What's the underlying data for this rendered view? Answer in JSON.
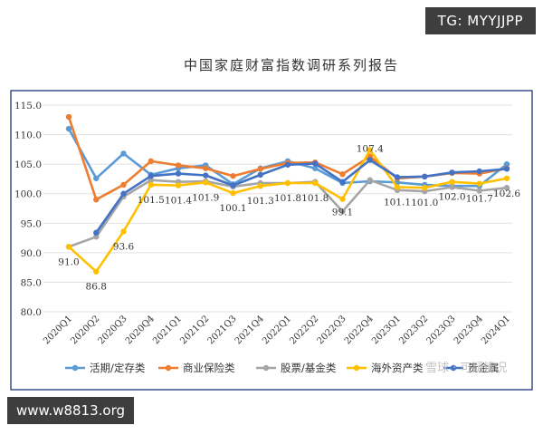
{
  "watermarks": {
    "tg": "TG: MYYJJPP",
    "site": "www.w8813.org",
    "xueqiu": "雪球 · 可疑情况"
  },
  "colors": {
    "frame": "#3a4f8f",
    "grid": "#e1e1e1",
    "axis_text": "#333333"
  },
  "chart_data": {
    "type": "line",
    "title": "中国家庭财富指数调研系列报告",
    "xlabel": "",
    "ylabel": "",
    "ylim": [
      80,
      115
    ],
    "yticks": [
      "80.0",
      "85.0",
      "90.0",
      "95.0",
      "100.0",
      "105.0",
      "110.0",
      "115.0"
    ],
    "grid": true,
    "legend_position": "bottom",
    "categories": [
      "2020Q1",
      "2020Q2",
      "2020Q3",
      "2020Q4",
      "2021Q1",
      "2021Q2",
      "2021Q3",
      "2021Q4",
      "2022Q1",
      "2022Q2",
      "2022Q3",
      "2022Q4",
      "2023Q1",
      "2023Q2",
      "2023Q3",
      "2023Q4",
      "2024Q1"
    ],
    "series": [
      {
        "name": "活期/定存类",
        "color": "#5b9bd5",
        "values": [
          111.0,
          102.6,
          106.8,
          103.2,
          104.3,
          104.8,
          101.6,
          104.3,
          105.5,
          104.3,
          101.8,
          102.1,
          101.9,
          101.5,
          101.3,
          101.3,
          105.0
        ]
      },
      {
        "name": "商业保险类",
        "color": "#ed7d31",
        "values": [
          113.0,
          99.0,
          101.5,
          105.5,
          104.8,
          104.3,
          103.0,
          104.2,
          105.2,
          105.3,
          103.3,
          106.3,
          102.6,
          102.9,
          103.5,
          103.4,
          104.3
        ]
      },
      {
        "name": "股票/基金类",
        "color": "#a5a5a5",
        "values": [
          91.0,
          92.7,
          99.5,
          102.3,
          102.0,
          102.1,
          101.2,
          101.8,
          101.8,
          102.0,
          97.0,
          102.3,
          100.6,
          100.4,
          101.1,
          100.5,
          101.0
        ]
      },
      {
        "name": "海外资产类",
        "color": "#ffc000",
        "values": [
          91.0,
          86.8,
          93.6,
          101.5,
          101.4,
          101.9,
          100.1,
          101.3,
          101.8,
          101.8,
          99.1,
          107.4,
          101.1,
          101.0,
          102.0,
          101.7,
          102.6
        ]
      },
      {
        "name": "贵金属",
        "color": "#4472c4",
        "values": [
          null,
          93.4,
          100.0,
          103.0,
          103.4,
          103.1,
          101.4,
          103.2,
          104.9,
          105.1,
          102.0,
          105.7,
          102.8,
          102.9,
          103.6,
          103.8,
          104.2
        ]
      }
    ],
    "data_labels": {
      "series": "海外资产类",
      "labels": [
        "91.0",
        "86.8",
        "93.6",
        "101.5",
        "101.4",
        "101.9",
        "100.1",
        "101.3",
        "101.8",
        "101.8",
        "99.1",
        "107.4",
        "101.1",
        "101.0",
        "102.0",
        "101.7",
        "102.6"
      ]
    }
  }
}
